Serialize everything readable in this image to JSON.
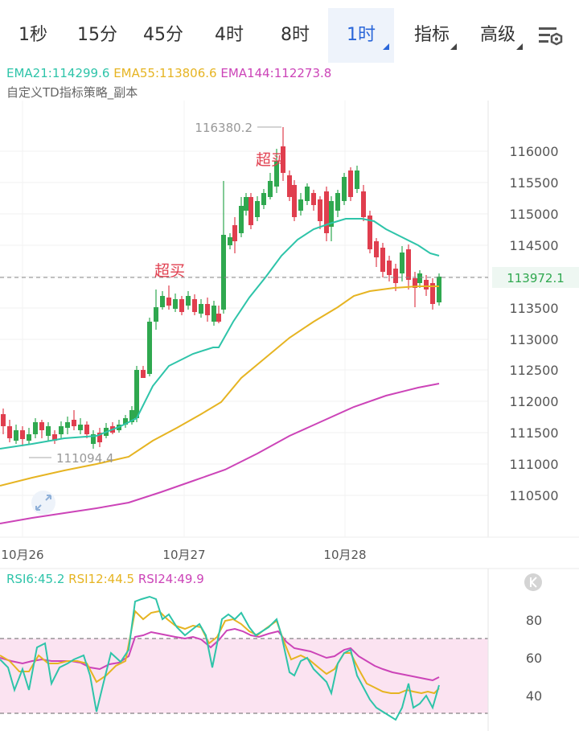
{
  "toolbar": {
    "tabs": [
      {
        "label": "1秒"
      },
      {
        "label": "15分"
      },
      {
        "label": "45分"
      },
      {
        "label": "4时"
      },
      {
        "label": "8时"
      },
      {
        "label": "1时",
        "active": true
      },
      {
        "label": "指标"
      },
      {
        "label": "高级"
      }
    ],
    "settings_icon": "chart-settings-icon"
  },
  "main_chart": {
    "ema_legend": [
      {
        "label": "EMA21:114299.6",
        "color": "#2ec4a9"
      },
      {
        "label": "EMA55:113806.6",
        "color": "#e6b422"
      },
      {
        "label": "EMA144:112273.8",
        "color": "#cc44b8"
      }
    ],
    "strategy_label": "自定义TD指标策略_副本",
    "price_ticks": [
      "116000",
      "115500",
      "115000",
      "114500",
      "114000",
      "113500",
      "113000",
      "112500",
      "112000",
      "111500",
      "111000",
      "110500"
    ],
    "current_price": "113972.1",
    "high_marker": "116380.2",
    "low_marker": "111094.4",
    "overbought_label": "超买",
    "date_labels": [
      "10月26",
      "10月27",
      "10月28"
    ],
    "expand_icon": "expand-arrows-icon"
  },
  "rsi_panel": {
    "legend": [
      {
        "label": "RSI6:45.2",
        "color": "#2ec4a9"
      },
      {
        "label": "RSI12:44.5",
        "color": "#e6b422"
      },
      {
        "label": "RSI24:49.9",
        "color": "#cc44b8"
      }
    ],
    "ticks": [
      "80",
      "60",
      "40"
    ],
    "collapse_icon": "collapse-panel-icon"
  },
  "colors": {
    "up": "#2fa84f",
    "down": "#e03e4e",
    "accent": "#2a66d9",
    "ema21": "#2ec4a9",
    "ema55": "#e6b422",
    "ema144": "#cc44b8",
    "rsi_band": "#fbe3f1"
  }
}
